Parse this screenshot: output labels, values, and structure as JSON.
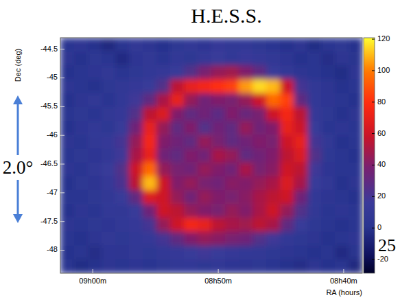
{
  "chart_data": {
    "type": "heatmap",
    "title": "H.E.S.S.",
    "x_label": "RA (hours)",
    "y_label": "Dec (deg)",
    "xlim": [
      9.043,
      8.642
    ],
    "ylim": [
      -48.4,
      -44.3
    ],
    "xticks": [
      {
        "value": 9.0,
        "label": "09h00m"
      },
      {
        "value": 8.8333,
        "label": "08h50m"
      },
      {
        "value": 8.6667,
        "label": "08h40m"
      }
    ],
    "yticks": [
      -44.5,
      -45,
      -45.5,
      -46,
      -46.5,
      -47,
      -47.5,
      -48
    ],
    "values": [
      [
        2,
        5,
        0,
        -5,
        3,
        8,
        4,
        0,
        6,
        10,
        5,
        12,
        8,
        10,
        6,
        3,
        0,
        4,
        -3,
        2,
        6,
        0
      ],
      [
        4,
        0,
        6,
        2,
        -4,
        5,
        8,
        3,
        10,
        6,
        12,
        15,
        10,
        14,
        12,
        8,
        5,
        0,
        3,
        -2,
        4,
        1
      ],
      [
        0,
        3,
        5,
        8,
        2,
        6,
        10,
        12,
        15,
        25,
        38,
        45,
        48,
        40,
        30,
        15,
        10,
        4,
        2,
        0,
        -3,
        5
      ],
      [
        5,
        2,
        0,
        6,
        8,
        12,
        15,
        25,
        55,
        70,
        75,
        80,
        85,
        105,
        115,
        110,
        60,
        20,
        8,
        4,
        0,
        2
      ],
      [
        0,
        4,
        8,
        3,
        10,
        18,
        30,
        50,
        70,
        45,
        35,
        40,
        38,
        45,
        60,
        95,
        85,
        30,
        10,
        5,
        2,
        0
      ],
      [
        3,
        6,
        2,
        8,
        12,
        25,
        55,
        65,
        40,
        30,
        35,
        28,
        40,
        32,
        38,
        60,
        75,
        55,
        12,
        6,
        0,
        4
      ],
      [
        0,
        5,
        10,
        6,
        15,
        35,
        70,
        45,
        30,
        40,
        25,
        35,
        30,
        45,
        35,
        40,
        70,
        60,
        15,
        3,
        5,
        2
      ],
      [
        4,
        2,
        8,
        12,
        20,
        45,
        75,
        40,
        35,
        30,
        45,
        38,
        30,
        35,
        40,
        38,
        60,
        70,
        20,
        8,
        0,
        3
      ],
      [
        2,
        6,
        5,
        10,
        18,
        50,
        70,
        35,
        30,
        40,
        35,
        50,
        45,
        30,
        35,
        40,
        55,
        65,
        25,
        6,
        2,
        0
      ],
      [
        5,
        3,
        8,
        15,
        25,
        60,
        95,
        45,
        38,
        35,
        45,
        40,
        35,
        50,
        38,
        42,
        60,
        55,
        18,
        5,
        3,
        2
      ],
      [
        0,
        6,
        4,
        12,
        22,
        55,
        110,
        60,
        40,
        45,
        38,
        35,
        42,
        40,
        45,
        50,
        65,
        50,
        15,
        8,
        0,
        4
      ],
      [
        3,
        2,
        6,
        8,
        15,
        30,
        65,
        60,
        45,
        35,
        45,
        40,
        38,
        42,
        50,
        55,
        60,
        35,
        10,
        4,
        2,
        0
      ],
      [
        0,
        5,
        3,
        10,
        8,
        15,
        35,
        60,
        55,
        45,
        40,
        38,
        45,
        40,
        50,
        60,
        45,
        25,
        8,
        3,
        5,
        2
      ],
      [
        4,
        2,
        6,
        5,
        10,
        12,
        20,
        45,
        60,
        75,
        70,
        55,
        50,
        48,
        55,
        50,
        30,
        15,
        6,
        2,
        0,
        3
      ],
      [
        2,
        0,
        4,
        8,
        6,
        10,
        12,
        20,
        30,
        40,
        45,
        42,
        38,
        35,
        25,
        18,
        10,
        6,
        4,
        0,
        2,
        5
      ],
      [
        0,
        3,
        -2,
        5,
        4,
        8,
        6,
        10,
        12,
        15,
        18,
        15,
        12,
        10,
        8,
        6,
        4,
        2,
        0,
        3,
        -4,
        1
      ],
      [
        2,
        -3,
        0,
        4,
        2,
        5,
        3,
        6,
        8,
        10,
        6,
        8,
        5,
        4,
        6,
        3,
        0,
        -2,
        4,
        0,
        2,
        -5
      ]
    ],
    "colorbar_range": [
      -28.7,
      120.9
    ],
    "colorbar_ticks": [
      120,
      100,
      80,
      60,
      40,
      20,
      0,
      -20
    ],
    "annotations": [
      "2.0°",
      "25"
    ]
  }
}
